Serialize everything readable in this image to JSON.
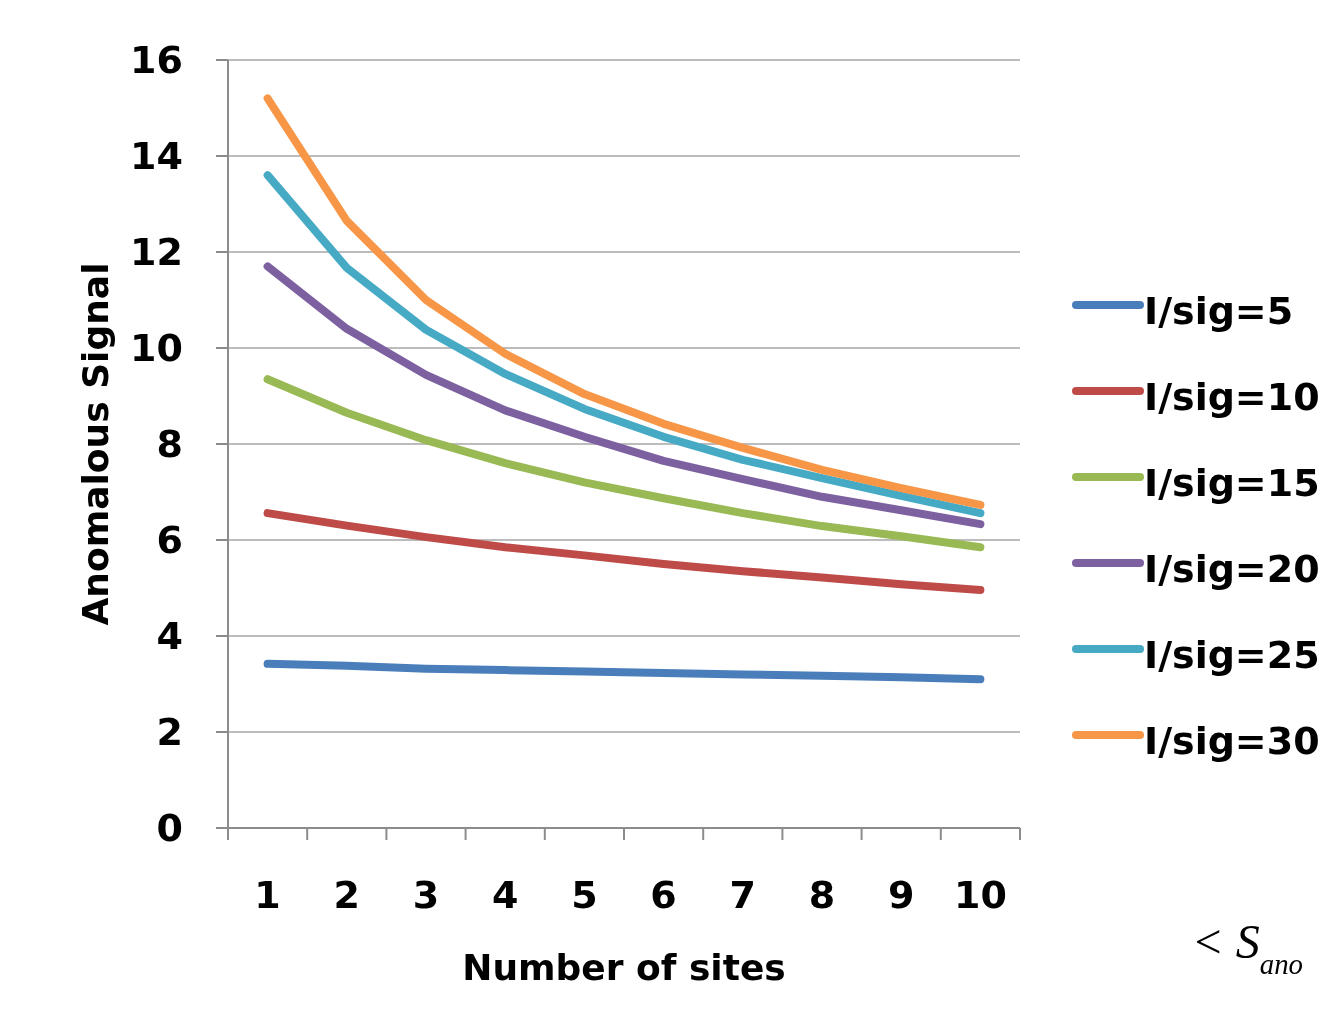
{
  "chart_data": {
    "type": "line",
    "xlabel": "Number of sites",
    "ylabel": "Anomalous Signal",
    "categories": [
      "1",
      "2",
      "3",
      "4",
      "5",
      "6",
      "7",
      "8",
      "9",
      "10"
    ],
    "ylim": [
      0,
      16
    ],
    "yticks": [
      0,
      2,
      4,
      6,
      8,
      10,
      12,
      14,
      16
    ],
    "grid": "y",
    "legend": "right",
    "marker": "none",
    "line_style": "solid",
    "annotations": [
      "< S$_{ano}$"
    ],
    "series": [
      {
        "name": "I/sig=5",
        "color": "#4a7ebb",
        "values": [
          3.42,
          3.38,
          3.32,
          3.29,
          3.26,
          3.23,
          3.2,
          3.17,
          3.14,
          3.1
        ]
      },
      {
        "name": "I/sig=10",
        "color": "#be4b48",
        "values": [
          6.56,
          6.3,
          6.06,
          5.85,
          5.68,
          5.5,
          5.35,
          5.22,
          5.08,
          4.96
        ]
      },
      {
        "name": "I/sig=15",
        "color": "#98b954",
        "values": [
          9.35,
          8.65,
          8.08,
          7.6,
          7.2,
          6.87,
          6.56,
          6.29,
          6.08,
          5.85
        ]
      },
      {
        "name": "I/sig=20",
        "color": "#7d60a0",
        "values": [
          11.7,
          10.4,
          9.44,
          8.7,
          8.15,
          7.65,
          7.27,
          6.9,
          6.62,
          6.33
        ]
      },
      {
        "name": "I/sig=25",
        "color": "#46aac5",
        "values": [
          13.6,
          11.67,
          10.38,
          9.46,
          8.73,
          8.15,
          7.67,
          7.29,
          6.92,
          6.56
        ]
      },
      {
        "name": "I/sig=30",
        "color": "#f79646",
        "values": [
          15.2,
          12.65,
          11,
          9.88,
          9.04,
          8.42,
          7.92,
          7.46,
          7.08,
          6.73
        ]
      }
    ]
  }
}
